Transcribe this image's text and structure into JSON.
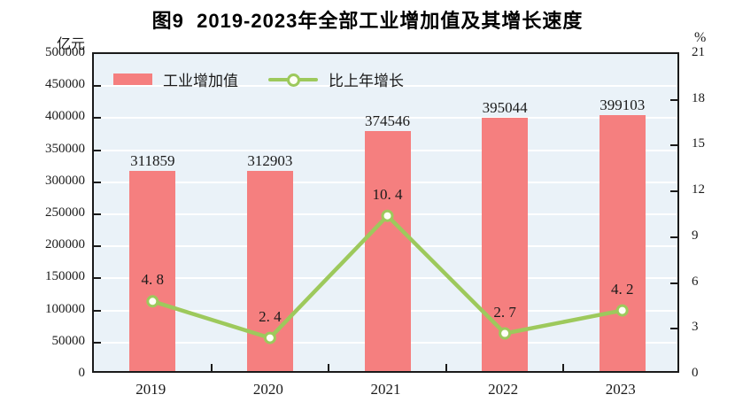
{
  "title": "图9  2019-2023年全部工业增加值及其增长速度",
  "chart_data": {
    "type": "bar",
    "combo": "bar+line",
    "categories": [
      "2019",
      "2020",
      "2021",
      "2022",
      "2023"
    ],
    "series": [
      {
        "name": "工业增加值",
        "type": "bar",
        "axis": "left",
        "color": "#F57F7F",
        "values": [
          311859,
          312903,
          374546,
          395044,
          399103
        ],
        "labels": [
          "311859",
          "312903",
          "374546",
          "395044",
          "399103"
        ]
      },
      {
        "name": "比上年增长",
        "type": "line",
        "axis": "right",
        "color": "#9DC95C",
        "marker_fill": "#FFFFF6",
        "values": [
          4.8,
          2.4,
          10.4,
          2.7,
          4.2
        ],
        "labels": [
          "4. 8",
          "2. 4",
          "10. 4",
          "2. 7",
          "4. 2"
        ]
      }
    ],
    "left_axis": {
      "unit": "亿元",
      "min": 0,
      "max": 500000,
      "step": 50000,
      "tick_labels": [
        "500000",
        "450000",
        "400000",
        "350000",
        "300000",
        "250000",
        "200000",
        "150000",
        "100000",
        "50000",
        "0"
      ]
    },
    "right_axis": {
      "unit": "%",
      "min": 0,
      "max": 21,
      "step": 3,
      "tick_labels": [
        "21",
        "18",
        "15",
        "12",
        "9",
        "6",
        "3",
        "0"
      ]
    },
    "grid": {
      "horizontal": true,
      "vertical": false,
      "color": "#FFFFFF"
    },
    "plot_background": "#EAF2F8",
    "legend_position": "top-left-inside"
  }
}
